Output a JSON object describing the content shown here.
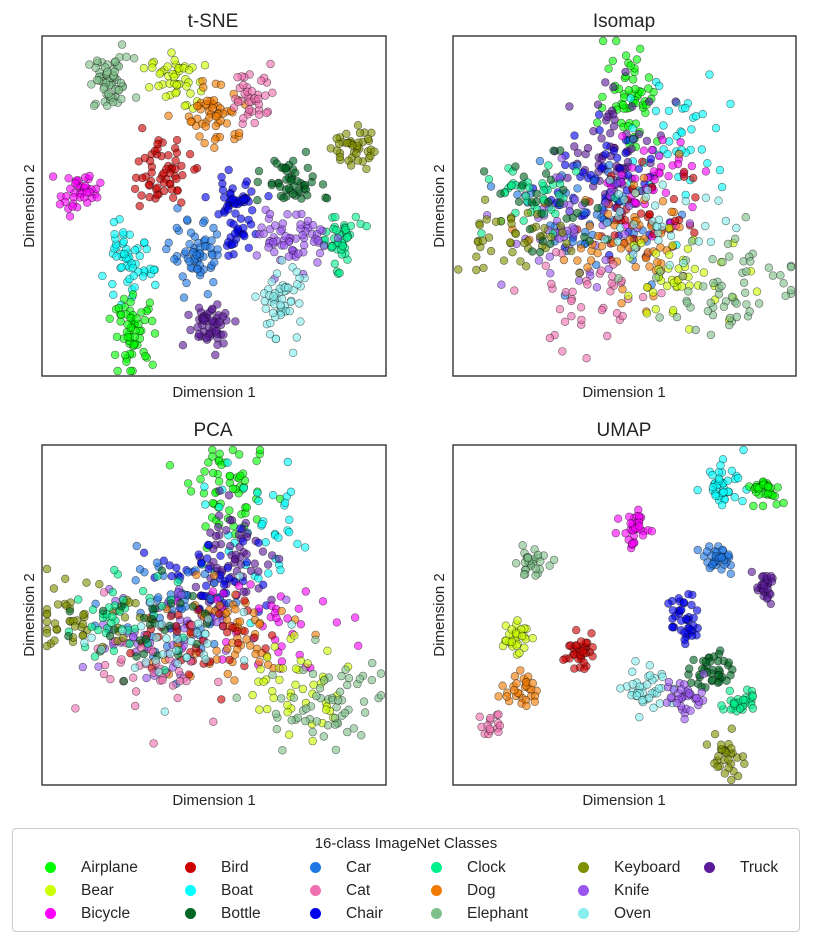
{
  "chart_data": [
    {
      "type": "scatter",
      "title": "t-SNE",
      "xlabel": "Dimension 1",
      "ylabel": "Dimension 2",
      "xlim": [
        0,
        100
      ],
      "ylim": [
        0,
        100
      ],
      "grid": false,
      "clusters": [
        {
          "class": "Elephant",
          "center": [
            19,
            87
          ],
          "spread": [
            3.5,
            4
          ],
          "n": 60
        },
        {
          "class": "Bear",
          "center": [
            38,
            88
          ],
          "spread": [
            3.5,
            4
          ],
          "n": 45
        },
        {
          "class": "Dog",
          "center": [
            51,
            78
          ],
          "spread": [
            4.5,
            5
          ],
          "n": 55
        },
        {
          "class": "Cat",
          "center": [
            62,
            84
          ],
          "spread": [
            3.5,
            4.5
          ],
          "n": 40
        },
        {
          "class": "Keyboard",
          "center": [
            91,
            68
          ],
          "spread": [
            3,
            3.5
          ],
          "n": 40
        },
        {
          "class": "Bicycle",
          "center": [
            10,
            54
          ],
          "spread": [
            3,
            3
          ],
          "n": 40
        },
        {
          "class": "Bird",
          "center": [
            34,
            60
          ],
          "spread": [
            4.5,
            5
          ],
          "n": 60
        },
        {
          "class": "Bottle",
          "center": [
            73,
            57
          ],
          "spread": [
            4,
            4
          ],
          "n": 50
        },
        {
          "class": "Clock",
          "center": [
            87,
            40
          ],
          "spread": [
            3,
            4
          ],
          "n": 45
        },
        {
          "class": "Chair",
          "center": [
            56,
            52
          ],
          "spread": [
            4,
            3
          ],
          "n": 40
        },
        {
          "class": "Chair",
          "center": [
            57,
            41
          ],
          "spread": [
            2.2,
            2.5
          ],
          "n": 25
        },
        {
          "class": "Knife",
          "center": [
            74,
            40
          ],
          "spread": [
            5,
            4
          ],
          "n": 65
        },
        {
          "class": "Car",
          "center": [
            45,
            35
          ],
          "spread": [
            4,
            5
          ],
          "n": 60
        },
        {
          "class": "Boat",
          "center": [
            24,
            32
          ],
          "spread": [
            4,
            5
          ],
          "n": 55
        },
        {
          "class": "Oven",
          "center": [
            70,
            21
          ],
          "spread": [
            3.5,
            6
          ],
          "n": 55
        },
        {
          "class": "Airplane",
          "center": [
            26,
            12
          ],
          "spread": [
            3,
            5
          ],
          "n": 60
        },
        {
          "class": "Truck",
          "center": [
            49,
            14
          ],
          "spread": [
            3.5,
            3.5
          ],
          "n": 55
        }
      ]
    },
    {
      "type": "scatter",
      "title": "Isomap",
      "xlabel": "Dimension 1",
      "ylabel": "Dimension 2",
      "xlim": [
        0,
        100
      ],
      "ylim": [
        0,
        100
      ],
      "grid": false,
      "clusters": [
        {
          "class": "Airplane",
          "center": [
            52,
            84
          ],
          "spread": [
            4,
            8
          ],
          "n": 60
        },
        {
          "class": "Boat",
          "center": [
            65,
            72
          ],
          "spread": [
            8,
            10
          ],
          "n": 45
        },
        {
          "class": "Truck",
          "center": [
            48,
            66
          ],
          "spread": [
            7,
            9
          ],
          "n": 70
        },
        {
          "class": "Chair",
          "center": [
            44,
            54
          ],
          "spread": [
            9,
            9
          ],
          "n": 60
        },
        {
          "class": "Car",
          "center": [
            40,
            48
          ],
          "spread": [
            10,
            9
          ],
          "n": 55
        },
        {
          "class": "Bicycle",
          "center": [
            58,
            58
          ],
          "spread": [
            8,
            7
          ],
          "n": 40
        },
        {
          "class": "Bird",
          "center": [
            56,
            46
          ],
          "spread": [
            9,
            7
          ],
          "n": 40
        },
        {
          "class": "Knife",
          "center": [
            34,
            42
          ],
          "spread": [
            10,
            8
          ],
          "n": 55
        },
        {
          "class": "Dog",
          "center": [
            52,
            36
          ],
          "spread": [
            12,
            9
          ],
          "n": 60
        },
        {
          "class": "Cat",
          "center": [
            40,
            22
          ],
          "spread": [
            10,
            8
          ],
          "n": 40
        },
        {
          "class": "Clock",
          "center": [
            22,
            52
          ],
          "spread": [
            7,
            6
          ],
          "n": 40
        },
        {
          "class": "Keyboard",
          "center": [
            15,
            40
          ],
          "spread": [
            9,
            5
          ],
          "n": 45
        },
        {
          "class": "Bottle",
          "center": [
            28,
            50
          ],
          "spread": [
            9,
            7
          ],
          "n": 30
        },
        {
          "class": "Bear",
          "center": [
            68,
            28
          ],
          "spread": [
            10,
            7
          ],
          "n": 45
        },
        {
          "class": "Elephant",
          "center": [
            82,
            26
          ],
          "spread": [
            11,
            8
          ],
          "n": 60
        },
        {
          "class": "Oven",
          "center": [
            62,
            48
          ],
          "spread": [
            10,
            8
          ],
          "n": 35
        }
      ]
    },
    {
      "type": "scatter",
      "title": "PCA",
      "xlabel": "Dimension 1",
      "ylabel": "Dimension 2",
      "xlim": [
        0,
        100
      ],
      "ylim": [
        0,
        100
      ],
      "grid": false,
      "clusters": [
        {
          "class": "Airplane",
          "center": [
            55,
            87
          ],
          "spread": [
            6,
            7
          ],
          "n": 60
        },
        {
          "class": "Boat",
          "center": [
            64,
            74
          ],
          "spread": [
            9,
            9
          ],
          "n": 40
        },
        {
          "class": "Truck",
          "center": [
            55,
            67
          ],
          "spread": [
            7,
            8
          ],
          "n": 65
        },
        {
          "class": "Chair",
          "center": [
            48,
            60
          ],
          "spread": [
            8,
            7
          ],
          "n": 55
        },
        {
          "class": "Car",
          "center": [
            38,
            52
          ],
          "spread": [
            10,
            8
          ],
          "n": 55
        },
        {
          "class": "Bicycle",
          "center": [
            66,
            50
          ],
          "spread": [
            10,
            8
          ],
          "n": 40
        },
        {
          "class": "Knife",
          "center": [
            32,
            45
          ],
          "spread": [
            12,
            8
          ],
          "n": 60
        },
        {
          "class": "Dog",
          "center": [
            52,
            44
          ],
          "spread": [
            11,
            8
          ],
          "n": 60
        },
        {
          "class": "Bird",
          "center": [
            46,
            42
          ],
          "spread": [
            10,
            7
          ],
          "n": 40
        },
        {
          "class": "Cat",
          "center": [
            36,
            33
          ],
          "spread": [
            12,
            8
          ],
          "n": 40
        },
        {
          "class": "Keyboard",
          "center": [
            10,
            48
          ],
          "spread": [
            7,
            5
          ],
          "n": 50
        },
        {
          "class": "Clock",
          "center": [
            22,
            50
          ],
          "spread": [
            9,
            6
          ],
          "n": 40
        },
        {
          "class": "Bottle",
          "center": [
            30,
            47
          ],
          "spread": [
            10,
            7
          ],
          "n": 30
        },
        {
          "class": "Oven",
          "center": [
            40,
            40
          ],
          "spread": [
            12,
            8
          ],
          "n": 35
        },
        {
          "class": "Bear",
          "center": [
            72,
            28
          ],
          "spread": [
            9,
            7
          ],
          "n": 45
        },
        {
          "class": "Elephant",
          "center": [
            84,
            22
          ],
          "spread": [
            9,
            8
          ],
          "n": 60
        }
      ]
    },
    {
      "type": "scatter",
      "title": "UMAP",
      "xlabel": "Dimension 1",
      "ylabel": "Dimension 2",
      "xlim": [
        0,
        100
      ],
      "ylim": [
        0,
        100
      ],
      "grid": false,
      "clusters": [
        {
          "class": "Boat",
          "center": [
            80,
            90
          ],
          "spread": [
            3,
            3
          ],
          "n": 40
        },
        {
          "class": "Airplane",
          "center": [
            92,
            88
          ],
          "spread": [
            2.5,
            1.8
          ],
          "n": 35
        },
        {
          "class": "Bicycle",
          "center": [
            53,
            76
          ],
          "spread": [
            2,
            3
          ],
          "n": 35
        },
        {
          "class": "Elephant",
          "center": [
            22,
            66
          ],
          "spread": [
            2.5,
            2
          ],
          "n": 30
        },
        {
          "class": "Car",
          "center": [
            78,
            67
          ],
          "spread": [
            2.5,
            2
          ],
          "n": 35
        },
        {
          "class": "Truck",
          "center": [
            92,
            58
          ],
          "spread": [
            1.8,
            2.2
          ],
          "n": 30
        },
        {
          "class": "Chair",
          "center": [
            68,
            49
          ],
          "spread": [
            2,
            4
          ],
          "n": 40
        },
        {
          "class": "Bear",
          "center": [
            17,
            43
          ],
          "spread": [
            2.2,
            2.2
          ],
          "n": 30
        },
        {
          "class": "Bird",
          "center": [
            36,
            39
          ],
          "spread": [
            2,
            2.5
          ],
          "n": 35
        },
        {
          "class": "Bottle",
          "center": [
            76,
            33
          ],
          "spread": [
            3,
            3
          ],
          "n": 40
        },
        {
          "class": "Oven",
          "center": [
            58,
            28
          ],
          "spread": [
            4,
            3.5
          ],
          "n": 40
        },
        {
          "class": "Knife",
          "center": [
            68,
            25
          ],
          "spread": [
            3,
            3
          ],
          "n": 35
        },
        {
          "class": "Clock",
          "center": [
            85,
            24
          ],
          "spread": [
            2.5,
            2
          ],
          "n": 30
        },
        {
          "class": "Dog",
          "center": [
            19,
            27
          ],
          "spread": [
            2.5,
            2.5
          ],
          "n": 30
        },
        {
          "class": "Cat",
          "center": [
            10,
            17
          ],
          "spread": [
            1.5,
            2.5
          ],
          "n": 15
        },
        {
          "class": "Keyboard",
          "center": [
            81,
            8
          ],
          "spread": [
            2.5,
            4
          ],
          "n": 30
        }
      ]
    }
  ],
  "legend": {
    "title": "16-class ImageNet Classes",
    "placement": "bottom-center",
    "items": [
      {
        "label": "Airplane",
        "color": "#00ff00"
      },
      {
        "label": "Bear",
        "color": "#ccff00"
      },
      {
        "label": "Bicycle",
        "color": "#ff00ff"
      },
      {
        "label": "Bird",
        "color": "#cc0000"
      },
      {
        "label": "Boat",
        "color": "#00ffff"
      },
      {
        "label": "Bottle",
        "color": "#006622"
      },
      {
        "label": "Car",
        "color": "#1f77e4"
      },
      {
        "label": "Cat",
        "color": "#f06fb0"
      },
      {
        "label": "Chair",
        "color": "#0000ee"
      },
      {
        "label": "Clock",
        "color": "#00f08c"
      },
      {
        "label": "Dog",
        "color": "#f07b00"
      },
      {
        "label": "Elephant",
        "color": "#7fc08a"
      },
      {
        "label": "Keyboard",
        "color": "#7f9000"
      },
      {
        "label": "Knife",
        "color": "#9955f0"
      },
      {
        "label": "Oven",
        "color": "#88eeee"
      },
      {
        "label": "Truck",
        "color": "#5a1a9a"
      }
    ]
  }
}
